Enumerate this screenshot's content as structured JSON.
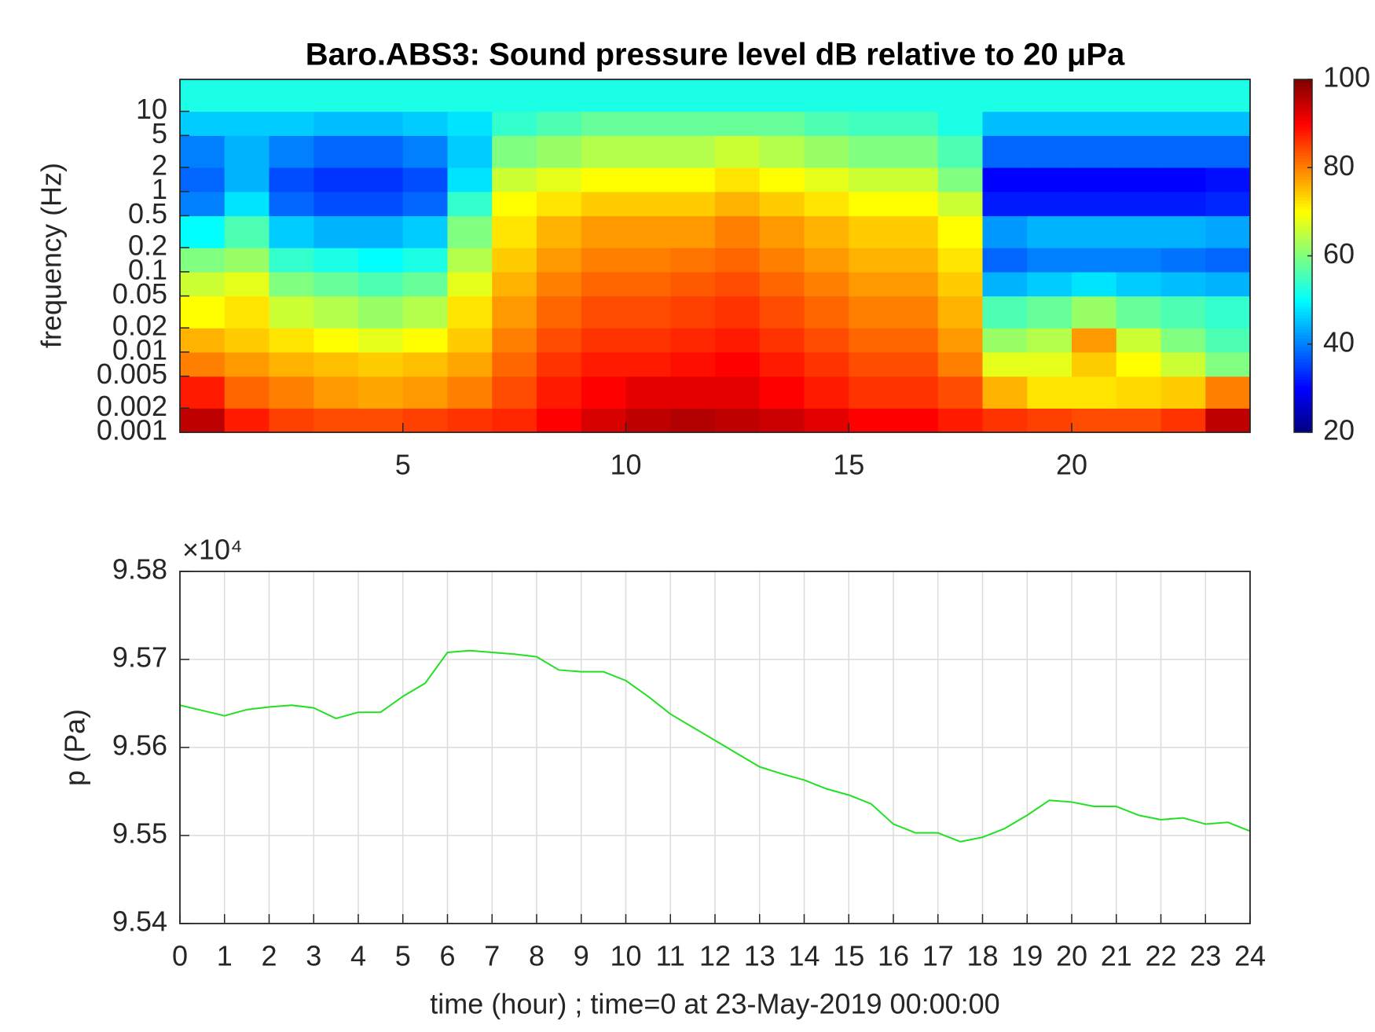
{
  "chart_data": [
    {
      "type": "heatmap",
      "title": "Baro.ABS3: Sound pressure level dB relative to 20 μPa",
      "ylabel": "frequency (Hz)",
      "colormap": "jet",
      "xbins": [
        0,
        1,
        2,
        3,
        4,
        5,
        6,
        7,
        8,
        9,
        10,
        11,
        12,
        13,
        14,
        15,
        16,
        17,
        18,
        19,
        20,
        21,
        22,
        23,
        24
      ],
      "ybins": [
        0.001,
        0.002,
        0.005,
        0.01,
        0.02,
        0.05,
        0.1,
        0.2,
        0.5,
        1,
        2,
        5,
        10,
        25
      ],
      "values": [
        [
          95,
          88,
          85,
          84,
          84,
          85,
          86,
          87,
          90,
          93,
          95,
          96,
          95,
          94,
          92,
          90,
          90,
          88,
          86,
          85,
          84,
          84,
          86,
          95
        ],
        [
          88,
          82,
          80,
          78,
          77,
          78,
          80,
          84,
          88,
          90,
          92,
          92,
          92,
          90,
          88,
          86,
          86,
          84,
          76,
          72,
          72,
          73,
          74,
          80
        ],
        [
          80,
          78,
          76,
          75,
          74,
          75,
          77,
          82,
          86,
          88,
          88,
          89,
          90,
          88,
          86,
          84,
          84,
          80,
          68,
          68,
          74,
          70,
          66,
          60
        ],
        [
          76,
          74,
          72,
          70,
          68,
          70,
          74,
          80,
          84,
          86,
          86,
          87,
          88,
          86,
          84,
          82,
          82,
          78,
          62,
          64,
          78,
          66,
          60,
          56
        ],
        [
          70,
          72,
          66,
          64,
          62,
          64,
          72,
          78,
          82,
          84,
          84,
          85,
          86,
          84,
          82,
          80,
          80,
          76,
          56,
          58,
          62,
          58,
          56,
          54
        ],
        [
          66,
          68,
          60,
          58,
          56,
          58,
          68,
          76,
          80,
          82,
          82,
          83,
          84,
          82,
          80,
          78,
          78,
          74,
          44,
          46,
          48,
          46,
          45,
          44
        ],
        [
          60,
          62,
          54,
          52,
          50,
          52,
          64,
          74,
          78,
          80,
          80,
          81,
          82,
          80,
          78,
          76,
          76,
          72,
          38,
          40,
          40,
          40,
          39,
          38
        ],
        [
          50,
          56,
          46,
          44,
          44,
          46,
          60,
          72,
          76,
          78,
          78,
          78,
          80,
          78,
          76,
          74,
          74,
          70,
          42,
          44,
          44,
          44,
          44,
          43
        ],
        [
          40,
          48,
          38,
          36,
          36,
          38,
          54,
          70,
          72,
          74,
          74,
          74,
          76,
          74,
          72,
          70,
          70,
          66,
          32,
          32,
          32,
          32,
          32,
          33
        ],
        [
          38,
          44,
          36,
          34,
          34,
          36,
          48,
          66,
          68,
          70,
          70,
          70,
          72,
          70,
          68,
          66,
          66,
          60,
          30,
          30,
          30,
          30,
          30,
          31
        ],
        [
          40,
          44,
          40,
          38,
          38,
          40,
          46,
          60,
          62,
          64,
          64,
          64,
          66,
          64,
          62,
          60,
          60,
          56,
          38,
          38,
          38,
          38,
          38,
          38
        ],
        [
          46,
          46,
          46,
          45,
          45,
          46,
          48,
          54,
          56,
          58,
          58,
          58,
          58,
          58,
          56,
          55,
          55,
          52,
          45,
          45,
          45,
          45,
          45,
          45
        ],
        [
          52,
          52,
          52,
          52,
          52,
          52,
          52,
          52,
          52,
          52,
          52,
          52,
          52,
          52,
          52,
          52,
          52,
          52,
          52,
          52,
          52,
          52,
          52,
          52
        ]
      ],
      "xlim": [
        0,
        24
      ],
      "xticks": [
        5,
        10,
        15,
        20
      ],
      "ylim": [
        0.001,
        25
      ],
      "ylog": true,
      "yticks": [
        0.001,
        0.002,
        0.005,
        0.01,
        0.02,
        0.05,
        0.1,
        0.2,
        0.5,
        1,
        2,
        5,
        10
      ],
      "clim": [
        20,
        100
      ],
      "cticks": [
        20,
        40,
        60,
        80,
        100
      ]
    },
    {
      "type": "line",
      "xlabel": "time (hour) ; time=0 at 23-May-2019 00:00:00",
      "ylabel": "p (Pa)",
      "y_multiplier": "×10⁴",
      "color": "#22e022",
      "grid": true,
      "x": [
        0,
        0.5,
        1,
        1.5,
        2,
        2.5,
        3,
        3.5,
        4,
        4.5,
        5,
        5.5,
        6,
        6.5,
        7,
        7.5,
        8,
        8.5,
        9,
        9.5,
        10,
        10.5,
        11,
        11.5,
        12,
        12.5,
        13,
        13.5,
        14,
        14.5,
        15,
        15.5,
        16,
        16.5,
        17,
        17.5,
        18,
        18.5,
        19,
        19.5,
        20,
        20.5,
        21,
        21.5,
        22,
        22.5,
        23,
        23.5,
        24
      ],
      "values": [
        95648,
        95642,
        95636,
        95643,
        95646,
        95648,
        95645,
        95633,
        95640,
        95640,
        95658,
        95673,
        95708,
        95710,
        95708,
        95706,
        95703,
        95688,
        95686,
        95686,
        95676,
        95658,
        95638,
        95623,
        95608,
        95593,
        95578,
        95570,
        95563,
        95553,
        95546,
        95536,
        95513,
        95503,
        95503,
        95493,
        95498,
        95508,
        95523,
        95540,
        95538,
        95533,
        95533,
        95523,
        95518,
        95520,
        95513,
        95515,
        95505
      ],
      "xlim": [
        0,
        24
      ],
      "xticks": [
        0,
        1,
        2,
        3,
        4,
        5,
        6,
        7,
        8,
        9,
        10,
        11,
        12,
        13,
        14,
        15,
        16,
        17,
        18,
        19,
        20,
        21,
        22,
        23,
        24
      ],
      "ylim": [
        95400,
        95800
      ],
      "yticks": [
        {
          "value": 95400,
          "label": "9.54"
        },
        {
          "value": 95500,
          "label": "9.55"
        },
        {
          "value": 95600,
          "label": "9.56"
        },
        {
          "value": 95700,
          "label": "9.57"
        },
        {
          "value": 95800,
          "label": "9.58"
        }
      ]
    }
  ]
}
